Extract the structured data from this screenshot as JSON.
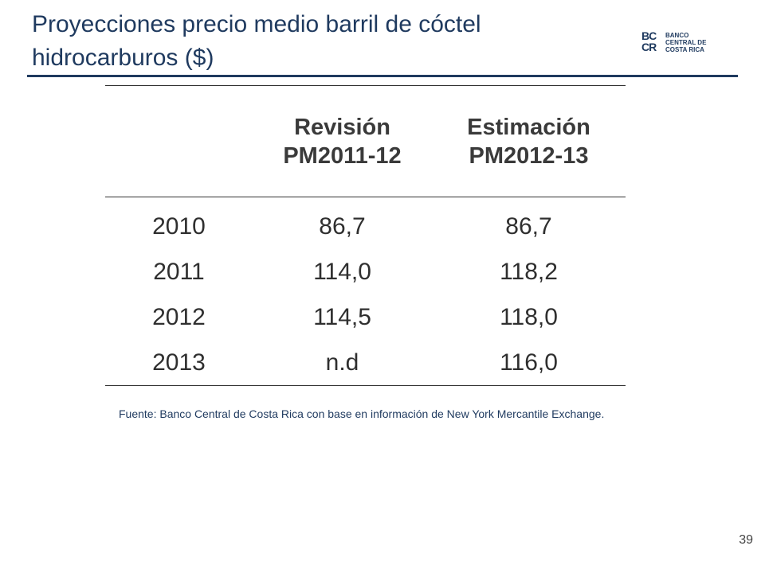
{
  "title": {
    "line1": "Proyecciones precio medio barril de cóctel",
    "line2": "hidrocarburos ($)"
  },
  "logo": {
    "mark_top": "BC",
    "mark_bottom": "CR",
    "text_line1": "BANCO",
    "text_line2": "CENTRAL DE",
    "text_line3": "COSTA RICA"
  },
  "table": {
    "header": {
      "col0": "",
      "col1_line1": "Revisión",
      "col1_line2": "PM2011-12",
      "col2_line1": "Estimación",
      "col2_line2": "PM2012-13"
    },
    "rows": [
      {
        "year": "2010",
        "revision": "86,7",
        "estimacion": "86,7"
      },
      {
        "year": "2011",
        "revision": "114,0",
        "estimacion": "118,2"
      },
      {
        "year": "2012",
        "revision": "114,5",
        "estimacion": "118,0"
      },
      {
        "year": "2013",
        "revision": "n.d",
        "estimacion": "116,0"
      }
    ]
  },
  "source": "Fuente: Banco Central de Costa Rica con base en información de New York Mercantile Exchange.",
  "page_number": "39",
  "colors": {
    "accent": "#1f3a5f"
  }
}
